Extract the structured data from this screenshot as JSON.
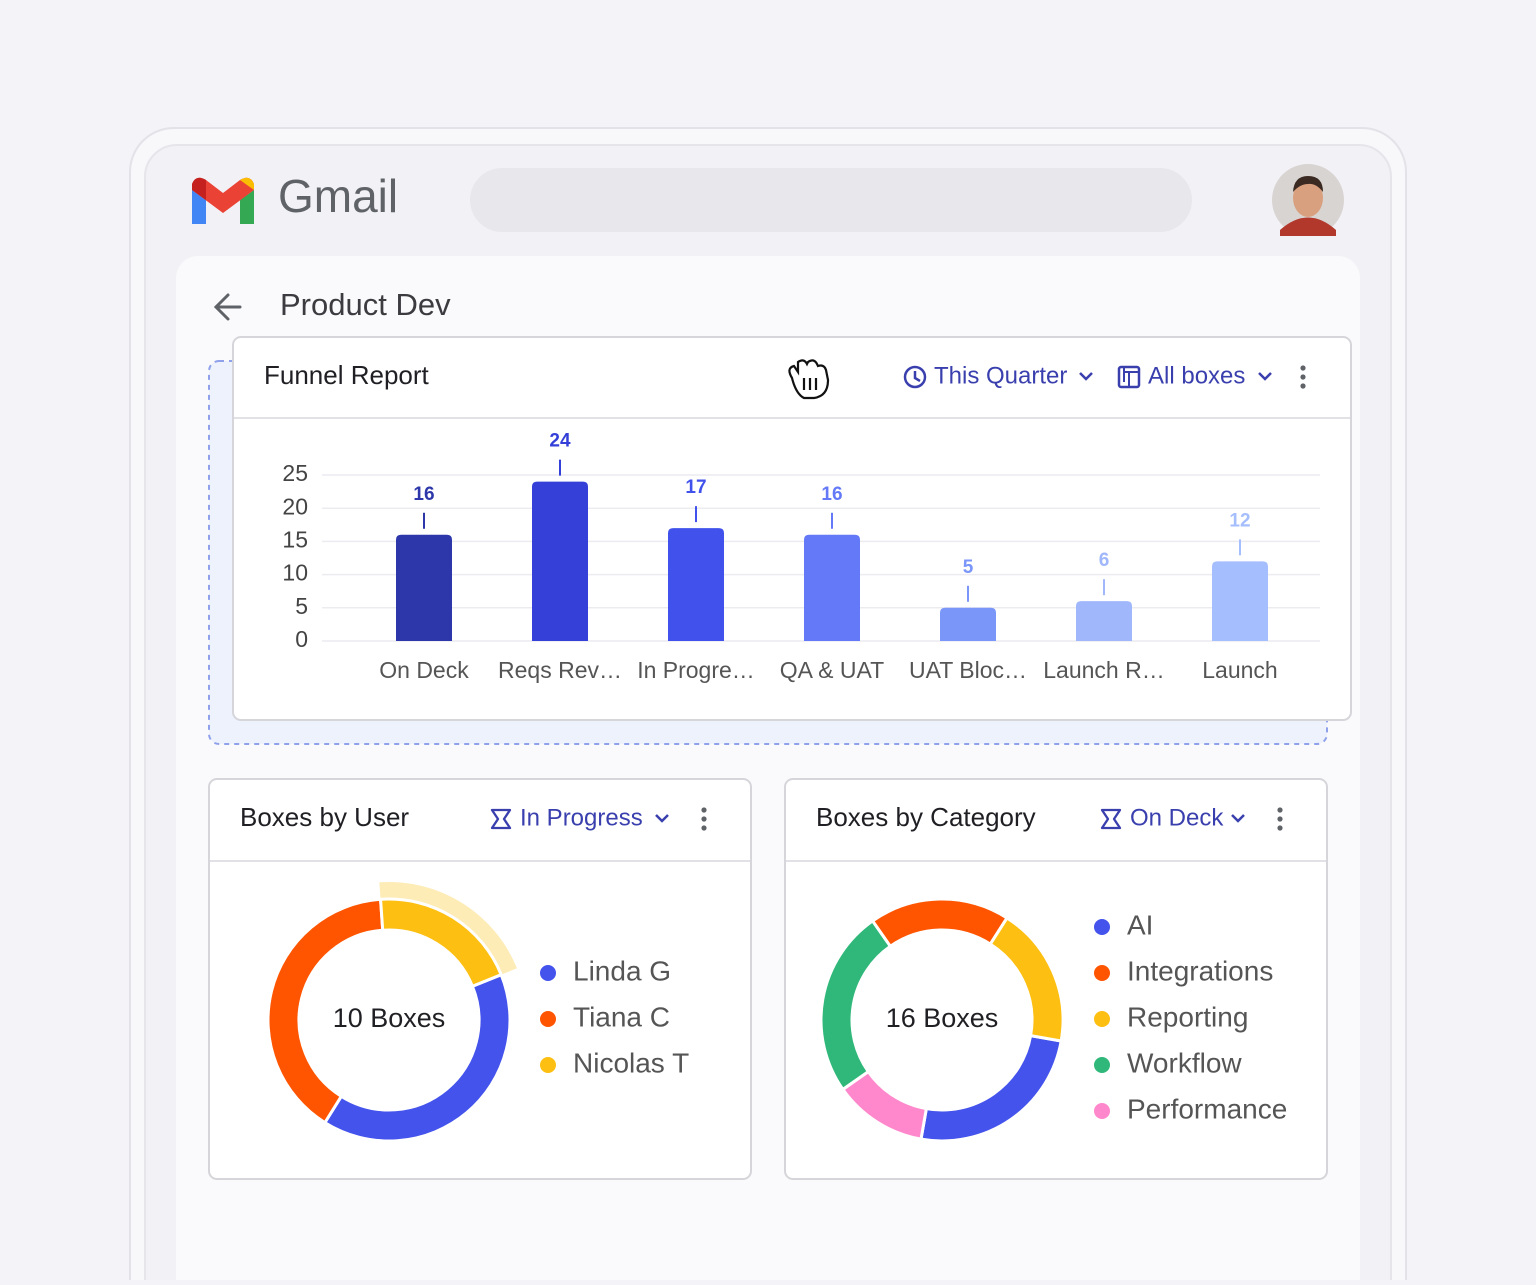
{
  "app": {
    "name": "Gmail"
  },
  "page": {
    "title": "Product Dev"
  },
  "chart_data": [
    {
      "type": "bar",
      "title": "Funnel Report",
      "filters": [
        "This Quarter",
        "All boxes"
      ],
      "categories": [
        "On Deck",
        "Reqs Rev…",
        "In Progre…",
        "QA & UAT",
        "UAT Bloc…",
        "Launch R…",
        "Launch"
      ],
      "values": [
        16,
        24,
        17,
        16,
        5,
        6,
        12
      ],
      "colors": [
        "#2d37a9",
        "#3440d8",
        "#4152ec",
        "#6479f7",
        "#7b96f9",
        "#a0b7fc",
        "#a5befd"
      ],
      "ylim": [
        0,
        25
      ],
      "yticks": [
        0,
        5,
        10,
        15,
        20,
        25
      ],
      "grid": true
    },
    {
      "type": "pie",
      "title": "Boxes by User",
      "filter": "In Progress",
      "center_label": "10 Boxes",
      "categories": [
        "Linda G",
        "Tiana C",
        "Nicolas T"
      ],
      "values": [
        4,
        4,
        2
      ],
      "colors": [
        "#4353ec",
        "#ff5500",
        "#fdbf12"
      ]
    },
    {
      "type": "pie",
      "title": "Boxes by Category",
      "filter": "On Deck",
      "center_label": "16 Boxes",
      "categories": [
        "AI",
        "Integrations",
        "Reporting",
        "Workflow",
        "Performance"
      ],
      "values": [
        4,
        3,
        3,
        4,
        2
      ],
      "colors": [
        "#4353ec",
        "#ff5500",
        "#fdbf12",
        "#30b87a",
        "#ff88cc"
      ]
    }
  ]
}
